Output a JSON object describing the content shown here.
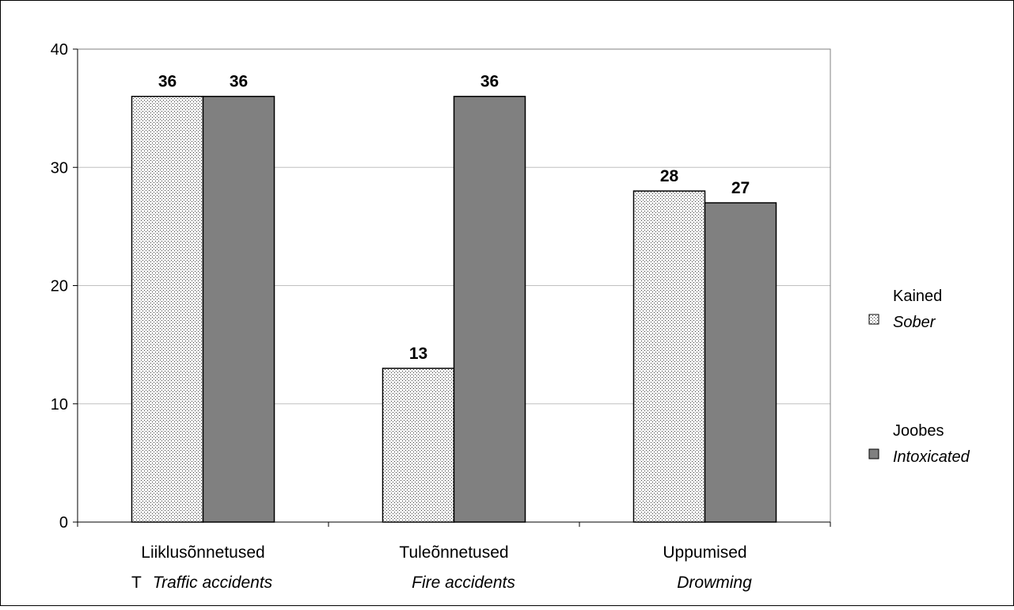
{
  "chart_data": {
    "type": "bar",
    "categories": [
      {
        "label": "Liiklusõnnetused",
        "sublabel": "Traffic accidents",
        "prefix": "T"
      },
      {
        "label": "Tuleõnnetused",
        "sublabel": "Fire accidents",
        "prefix": ""
      },
      {
        "label": "Uppumised",
        "sublabel": "Drowming",
        "prefix": ""
      }
    ],
    "series": [
      {
        "name": "Kained",
        "subname": "Sober",
        "pattern": "dotted",
        "color": "#ffffff",
        "values": [
          36,
          13,
          28
        ]
      },
      {
        "name": "Joobes",
        "subname": "Intoxicated",
        "pattern": "solid",
        "color": "#808080",
        "values": [
          36,
          36,
          27
        ]
      }
    ],
    "ylim": [
      0,
      40
    ],
    "yticks": [
      0,
      10,
      20,
      30,
      40
    ],
    "grid": true,
    "legend_position": "right",
    "data_labels": true,
    "title": "",
    "xlabel": "",
    "ylabel": ""
  }
}
